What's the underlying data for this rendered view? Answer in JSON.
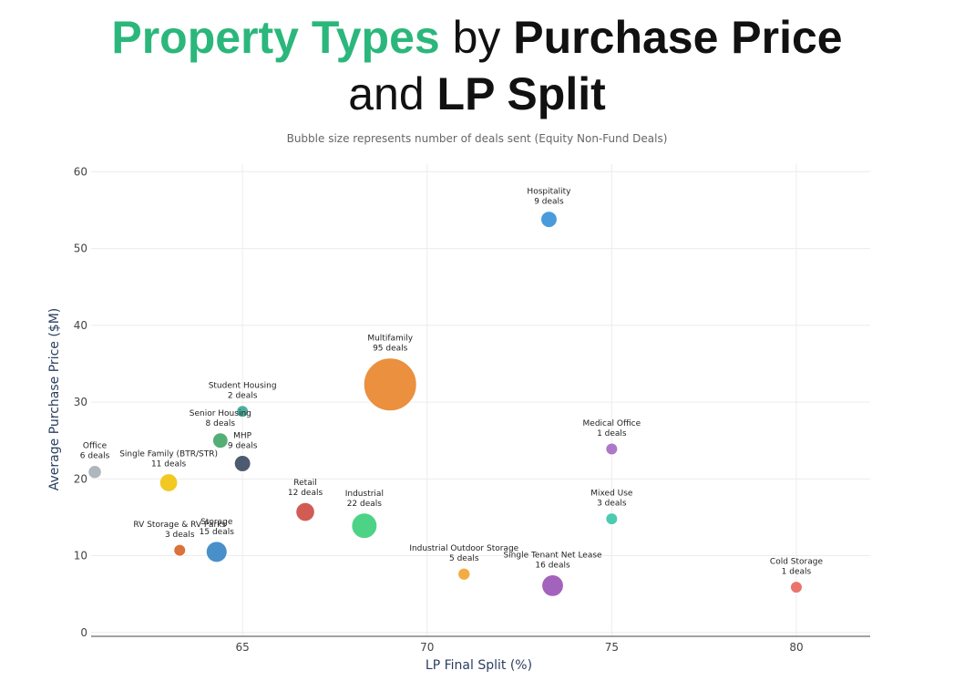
{
  "header": {
    "title_part1": "Property Types",
    "title_part2": " by ",
    "title_part3": "Purchase Price",
    "title_part4": "and ",
    "title_part5": "LP Split",
    "subtitle": "Bubble size represents number of deals sent (Equity Non-Fund Deals)"
  },
  "colors": {
    "accent": "#2bb77b"
  },
  "chart_data": {
    "type": "scatter",
    "xlabel": "LP Final Split (%)",
    "ylabel": "Average Purchase Price ($M)",
    "xlim": [
      60.9,
      82
    ],
    "ylim": [
      -0.5,
      61
    ],
    "xticks": [
      65,
      70,
      75,
      80
    ],
    "yticks": [
      0,
      10,
      20,
      30,
      40,
      50,
      60
    ],
    "grid": true,
    "points": [
      {
        "name": "Hospitality",
        "label": "9 deals",
        "deals": 9,
        "x": 73.3,
        "y": 53.8,
        "color": "#3b93d9"
      },
      {
        "name": "Multifamily",
        "label": "95 deals",
        "deals": 95,
        "x": 69.0,
        "y": 32.3,
        "color": "#e8872e"
      },
      {
        "name": "Student Housing",
        "label": "2 deals",
        "deals": 2,
        "x": 65.0,
        "y": 28.8,
        "color": "#3fa897"
      },
      {
        "name": "Senior Housing",
        "label": "8 deals",
        "deals": 8,
        "x": 64.4,
        "y": 25.0,
        "color": "#45a86a"
      },
      {
        "name": "MHP",
        "label": "9 deals",
        "deals": 9,
        "x": 65.0,
        "y": 22.0,
        "color": "#3d4d63"
      },
      {
        "name": "Office",
        "label": "6 deals",
        "deals": 6,
        "x": 61.0,
        "y": 20.9,
        "color": "#a8b1b6"
      },
      {
        "name": "Single Family (BTR/STR)",
        "label": "11 deals",
        "deals": 11,
        "x": 63.0,
        "y": 19.5,
        "color": "#f1c40f"
      },
      {
        "name": "Retail",
        "label": "12 deals",
        "deals": 12,
        "x": 66.7,
        "y": 15.7,
        "color": "#cd4e45"
      },
      {
        "name": "Industrial",
        "label": "22 deals",
        "deals": 22,
        "x": 68.3,
        "y": 13.9,
        "color": "#3ecf7c"
      },
      {
        "name": "RV Storage & RV Parks",
        "label": "3 deals",
        "deals": 3,
        "x": 63.3,
        "y": 10.7,
        "color": "#d9662a"
      },
      {
        "name": "Storage",
        "label": "15 deals",
        "deals": 15,
        "x": 64.3,
        "y": 10.5,
        "color": "#3987c6"
      },
      {
        "name": "Medical Office",
        "label": "1 deals",
        "deals": 1,
        "x": 75.0,
        "y": 23.9,
        "color": "#a86bc3"
      },
      {
        "name": "Mixed Use",
        "label": "3 deals",
        "deals": 3,
        "x": 75.0,
        "y": 14.8,
        "color": "#3ec7aa"
      },
      {
        "name": "Industrial Outdoor Storage",
        "label": "5 deals",
        "deals": 5,
        "x": 71.0,
        "y": 7.6,
        "color": "#f1a531"
      },
      {
        "name": "Single Tenant Net Lease",
        "label": "16 deals",
        "deals": 16,
        "x": 73.4,
        "y": 6.1,
        "color": "#9b56b6"
      },
      {
        "name": "Cold Storage",
        "label": "1 deals",
        "deals": 1,
        "x": 80.0,
        "y": 5.9,
        "color": "#e8685e"
      }
    ]
  }
}
